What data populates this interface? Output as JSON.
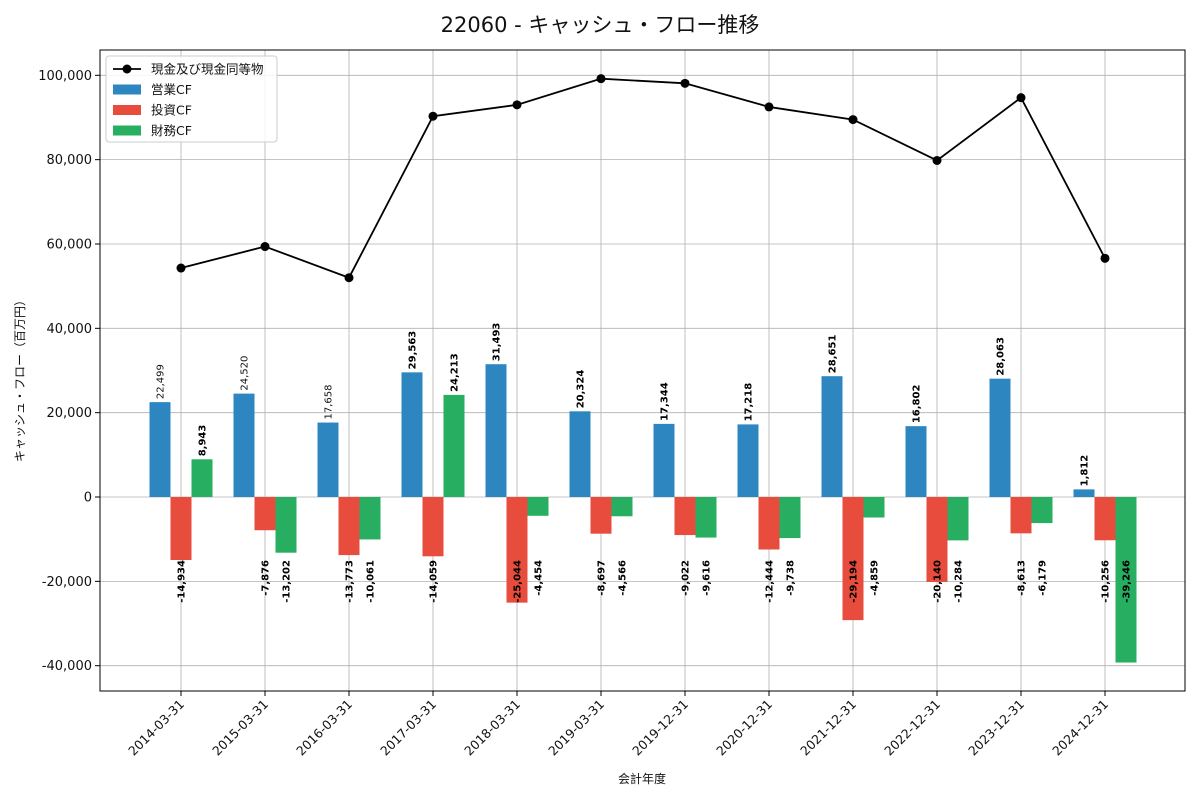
{
  "chart_data": {
    "type": "bar",
    "title": "22060 - キャッシュ・フロー推移",
    "xlabel": "会計年度",
    "ylabel": "キャッシュ・フロー（百万円）",
    "ylim": [
      -46000,
      106000
    ],
    "yticks": [
      -40000,
      -20000,
      0,
      20000,
      40000,
      60000,
      80000,
      100000
    ],
    "ytick_labels": [
      "-40,000",
      "-20,000",
      "0",
      "20,000",
      "40,000",
      "60,000",
      "80,000",
      "100,000"
    ],
    "grid": true,
    "legend_position": "top-left",
    "categories": [
      "2014-03-31",
      "2015-03-31",
      "2016-03-31",
      "2017-03-31",
      "2018-03-31",
      "2019-03-31",
      "2019-12-31",
      "2020-12-31",
      "2021-12-31",
      "2022-12-31",
      "2023-12-31",
      "2024-12-31"
    ],
    "series": [
      {
        "name": "営業CF",
        "kind": "bar",
        "color": "#2e86c1",
        "values": [
          22499,
          24520,
          17658,
          29563,
          31493,
          20324,
          17344,
          17218,
          28651,
          16802,
          28063,
          1812
        ],
        "labels": [
          "22,499",
          "24,520",
          "17,658",
          "29,563",
          "31,493",
          "20,324",
          "17,344",
          "17,218",
          "28,651",
          "16,802",
          "28,063",
          "1,812"
        ]
      },
      {
        "name": "投資CF",
        "kind": "bar",
        "color": "#e74c3c",
        "values": [
          -14934,
          -7876,
          -13773,
          -14059,
          -25044,
          -8697,
          -9022,
          -12444,
          -29194,
          -20140,
          -8613,
          -10256
        ],
        "labels": [
          "-14,934",
          "-7,876",
          "-13,773",
          "-14,059",
          "-25,044",
          "-8,697",
          "-9,022",
          "-12,444",
          "-29,194",
          "-20,140",
          "-8,613",
          "-10,256"
        ]
      },
      {
        "name": "財務CF",
        "kind": "bar",
        "color": "#27ae60",
        "values": [
          8943,
          -13202,
          -10061,
          24213,
          -4454,
          -4566,
          -9616,
          -9738,
          -4859,
          -10284,
          -6179,
          -39246
        ],
        "labels": [
          "8,943",
          "-13,202",
          "-10,061",
          "24,213",
          "-4,454",
          "-4,566",
          "-9,616",
          "-9,738",
          "-4,859",
          "-10,284",
          "-6,179",
          "-39,246"
        ]
      },
      {
        "name": "現金及び現金同等物",
        "kind": "line",
        "color": "#000000",
        "values": [
          54300,
          59400,
          52000,
          90300,
          93000,
          99200,
          98100,
          92500,
          89500,
          79800,
          94700,
          56600
        ]
      }
    ]
  }
}
